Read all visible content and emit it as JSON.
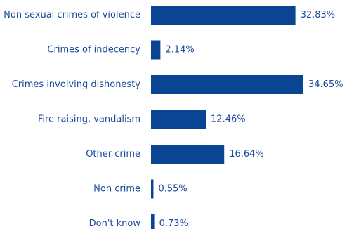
{
  "chart_data": {
    "type": "bar",
    "orientation": "horizontal",
    "categories": [
      "Non sexual crimes of violence",
      "Crimes of indecency",
      "Crimes involving dishonesty",
      "Fire raising, vandalism",
      "Other crime",
      "Non crime",
      "Don't know"
    ],
    "values": [
      32.83,
      2.14,
      34.65,
      12.46,
      16.64,
      0.55,
      0.73
    ],
    "value_labels": [
      "32.83%",
      "2.14%",
      "34.65%",
      "12.46%",
      "16.64%",
      "0.55%",
      "0.73%"
    ],
    "xlim": [
      0,
      34.65
    ],
    "grid": false,
    "legend": "none",
    "colors": {
      "bar": "#0a4594",
      "text": "#1a4a9a"
    }
  }
}
